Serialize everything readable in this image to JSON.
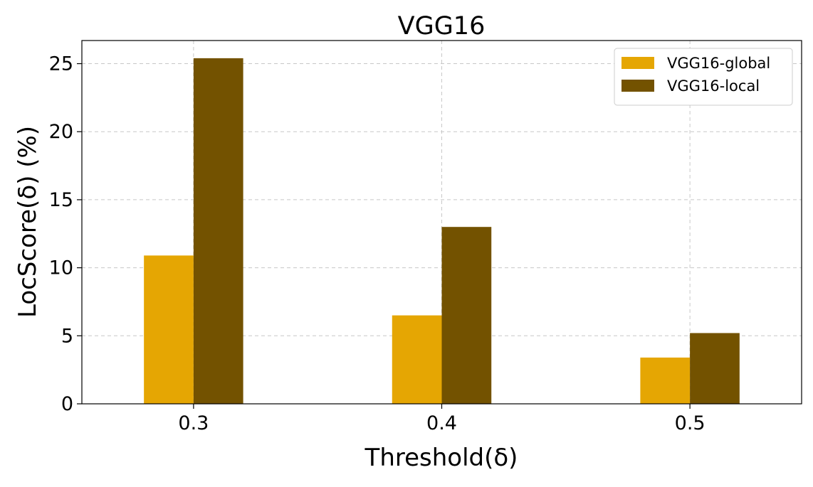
{
  "chart_data": {
    "type": "bar",
    "title": "VGG16",
    "xlabel": "Threshold(δ)",
    "ylabel": "LocScore(δ) (%)",
    "categories": [
      "0.3",
      "0.4",
      "0.5"
    ],
    "series": [
      {
        "name": "VGG16-global",
        "values": [
          10.9,
          6.5,
          3.4
        ],
        "color": "#e5a603"
      },
      {
        "name": "VGG16-local",
        "values": [
          25.4,
          13.0,
          5.2
        ],
        "color": "#735200"
      }
    ],
    "ylim": [
      0,
      26.7
    ],
    "yticks": [
      0,
      5,
      10,
      15,
      20,
      25
    ],
    "grid": true,
    "legend_position": "top-right"
  }
}
